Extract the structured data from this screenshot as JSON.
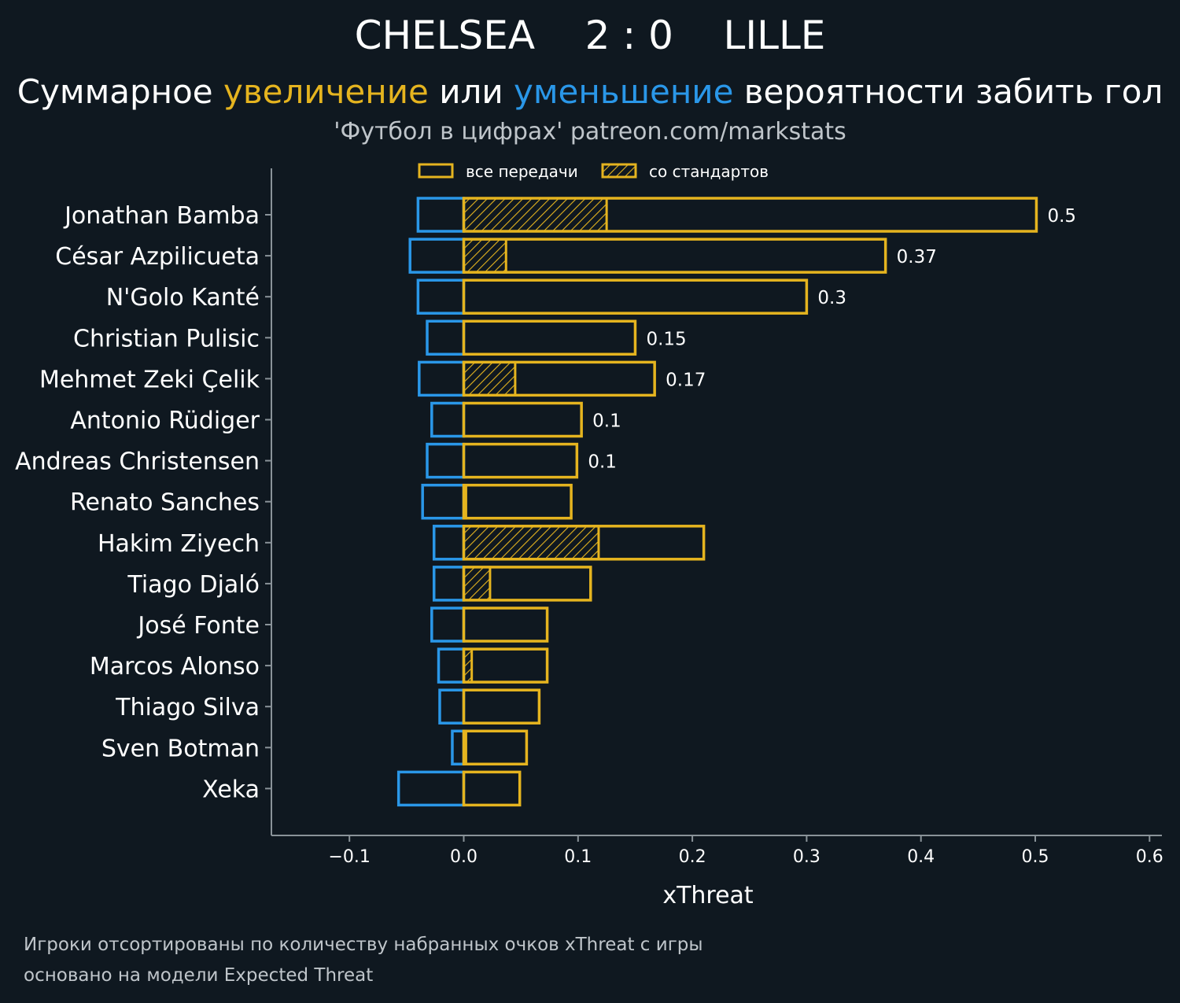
{
  "header": {
    "title": "CHELSEA    2 : 0    LILLE",
    "subtitle": {
      "part1": "Суммарное ",
      "increase_word": "увеличение",
      "part2": " или ",
      "decrease_word": "уменьшение",
      "part3": " вероятности забить гол"
    },
    "source": "'Футбол в цифрах' patreon.com/markstats"
  },
  "legend": {
    "all_passes": "все передачи",
    "set_pieces": "со стандартов"
  },
  "colors": {
    "background": "#0f1820",
    "increase": "#e5b41f",
    "decrease": "#2a97e8",
    "axis": "#8a9399"
  },
  "chart_data": {
    "type": "bar",
    "orientation": "horizontal",
    "xlabel": "xThreat",
    "xlim": [
      -0.17,
      0.61
    ],
    "xticks": [
      -0.1,
      0.0,
      0.1,
      0.2,
      0.3,
      0.4,
      0.5,
      0.6
    ],
    "xtick_labels": [
      "−0.1",
      "0.0",
      "0.1",
      "0.2",
      "0.3",
      "0.4",
      "0.5",
      "0.6"
    ],
    "legend_position": "top-center",
    "categories": [
      "Jonathan Bamba",
      "César Azpilicueta",
      "N'Golo Kanté",
      "Christian Pulisic",
      "Mehmet Zeki Çelik",
      "Antonio Rüdiger",
      "Andreas Christensen",
      "Renato Sanches",
      "Hakim Ziyech",
      "Tiago Djaló",
      "José Fonte",
      "Marcos Alonso",
      "Thiago Silva",
      "Sven Botman",
      "Xeka"
    ],
    "series": [
      {
        "name": "все передачи",
        "values": [
          0.501,
          0.369,
          0.3,
          0.15,
          0.167,
          0.103,
          0.099,
          0.094,
          0.21,
          0.111,
          0.073,
          0.073,
          0.066,
          0.055,
          0.049
        ]
      },
      {
        "name": "со стандартов",
        "values": [
          0.125,
          0.037,
          0.0,
          0.0,
          0.045,
          0.0,
          0.0,
          0.002,
          0.118,
          0.023,
          0.0,
          0.007,
          0.0,
          0.002,
          0.0
        ]
      },
      {
        "values": [
          -0.04,
          -0.047,
          -0.04,
          -0.032,
          -0.039,
          -0.028,
          -0.032,
          -0.036,
          -0.026,
          -0.026,
          -0.028,
          -0.022,
          -0.021,
          -0.01,
          -0.057
        ]
      }
    ],
    "value_labels": [
      "0.5",
      "0.37",
      "0.3",
      "0.15",
      "0.17",
      "0.1",
      "0.1",
      "",
      "",
      "",
      "",
      "",
      "",
      "",
      ""
    ]
  },
  "footnotes": {
    "line1": "Игроки отсортированы по количеству набранных очков xThreat с игры",
    "line2": "основано на модели Expected Threat"
  }
}
